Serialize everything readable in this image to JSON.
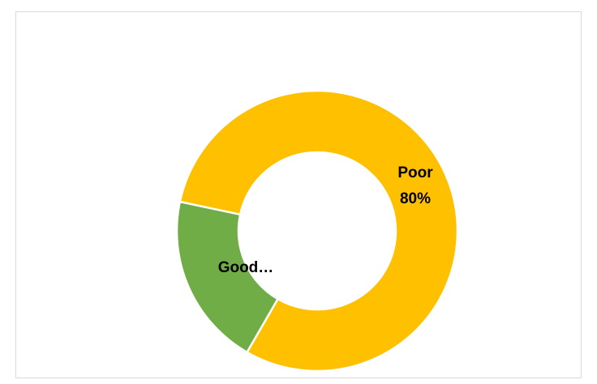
{
  "chart_data": {
    "type": "donut",
    "categories": [
      "Poor",
      "Good…"
    ],
    "values": [
      80,
      20
    ],
    "value_labels": [
      "80%",
      null
    ],
    "colors": [
      "#FFC000",
      "#70AD47"
    ]
  }
}
